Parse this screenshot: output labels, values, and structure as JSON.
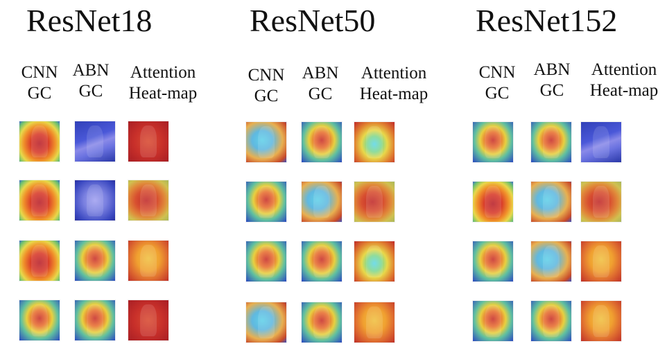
{
  "panels": [
    {
      "title": "ResNet18",
      "columns": [
        {
          "line1": "CNN",
          "line2": "GC"
        },
        {
          "line1": "ABN",
          "line2": "GC"
        },
        {
          "line1": "Attention",
          "line2": "Heat-map"
        }
      ]
    },
    {
      "title": "ResNet50",
      "columns": [
        {
          "line1": "CNN",
          "line2": "GC"
        },
        {
          "line1": "ABN",
          "line2": "GC"
        },
        {
          "line1": "Attention",
          "line2": "Heat-map"
        }
      ]
    },
    {
      "title": "ResNet152",
      "columns": [
        {
          "line1": "CNN",
          "line2": "GC"
        },
        {
          "line1": "ABN",
          "line2": "GC"
        },
        {
          "line1": "Attention",
          "line2": "Heat-map"
        }
      ]
    }
  ],
  "colors": {
    "background": "#ffffff",
    "heat_red": "#c8202a",
    "heat_orange": "#f08a2a",
    "heat_yellow": "#f5e04a",
    "heat_green": "#7cc86a",
    "heat_cyan": "#4fd0e8",
    "heat_blue": "#2a3fb8",
    "heat_pale_blue": "#8a8ae8"
  }
}
